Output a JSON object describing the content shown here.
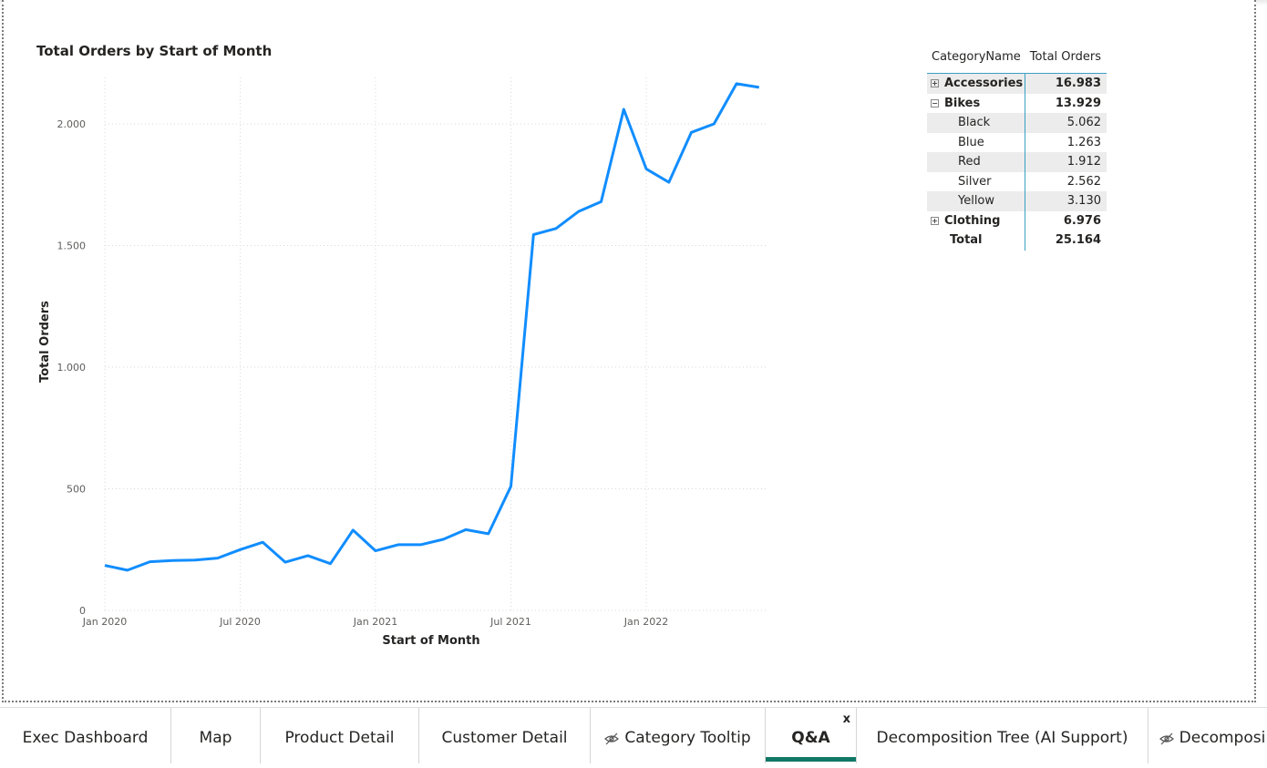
{
  "chart": {
    "title": "Total Orders by Start of Month"
  },
  "chart_data": {
    "type": "line",
    "title": "Total Orders by Start of Month",
    "xlabel": "Start of Month",
    "ylabel": "Total Orders",
    "ylim": [
      0,
      2200
    ],
    "yticks": [
      0,
      500,
      1000,
      1500,
      2000
    ],
    "ytick_labels": [
      "0",
      "500",
      "1.000",
      "1.500",
      "2.000"
    ],
    "xtick_labels": [
      "Jan 2020",
      "Jul 2020",
      "Jan 2021",
      "Jul 2021",
      "Jan 2022"
    ],
    "grid": true,
    "line_color": "#118DFF",
    "series": [
      {
        "x": [
          "2020-01",
          "2020-02",
          "2020-03",
          "2020-04",
          "2020-05",
          "2020-06",
          "2020-07",
          "2020-08",
          "2020-09",
          "2020-10",
          "2020-11",
          "2020-12",
          "2021-01",
          "2021-02",
          "2021-03",
          "2021-04",
          "2021-05",
          "2021-06",
          "2021-07",
          "2021-08",
          "2021-09",
          "2021-10",
          "2021-11",
          "2021-12",
          "2022-01",
          "2022-02",
          "2022-03",
          "2022-04",
          "2022-05",
          "2022-06"
        ],
        "values": [
          185,
          165,
          200,
          205,
          207,
          215,
          250,
          280,
          198,
          225,
          192,
          330,
          245,
          270,
          270,
          292,
          332,
          315,
          510,
          1545,
          1570,
          1640,
          1680,
          2060,
          1815,
          1760,
          1965,
          2000,
          2165,
          2150
        ]
      }
    ]
  },
  "matrix": {
    "headers": [
      "CategoryName",
      "Total Orders"
    ],
    "rows": [
      {
        "name": "Accessories",
        "value": "16.983",
        "level": 0,
        "toggle": "⊞"
      },
      {
        "name": "Bikes",
        "value": "13.929",
        "level": 0,
        "toggle": "⊟"
      },
      {
        "name": "Black",
        "value": "5.062",
        "level": 1
      },
      {
        "name": "Blue",
        "value": "1.263",
        "level": 1
      },
      {
        "name": "Red",
        "value": "1.912",
        "level": 1
      },
      {
        "name": "Silver",
        "value": "2.562",
        "level": 1
      },
      {
        "name": "Yellow",
        "value": "3.130",
        "level": 1
      },
      {
        "name": "Clothing",
        "value": "6.976",
        "level": 0,
        "toggle": "⊞"
      }
    ],
    "total": {
      "name": "Total",
      "value": "25.164"
    }
  },
  "tabs": [
    {
      "label": "Exec Dashboard"
    },
    {
      "label": "Map"
    },
    {
      "label": "Product Detail"
    },
    {
      "label": "Customer Detail"
    },
    {
      "label": "Category Tooltip",
      "icon": "hidden-eye-icon"
    },
    {
      "label": "Q&A",
      "active": true,
      "close": "x"
    },
    {
      "label": "Decomposition Tree (AI Support)"
    },
    {
      "label": "Decomposi",
      "icon": "hidden-eye-icon"
    }
  ],
  "colors": {
    "accent": "#117865",
    "line": "#118DFF",
    "matrix_divider": "#38a0c4"
  }
}
